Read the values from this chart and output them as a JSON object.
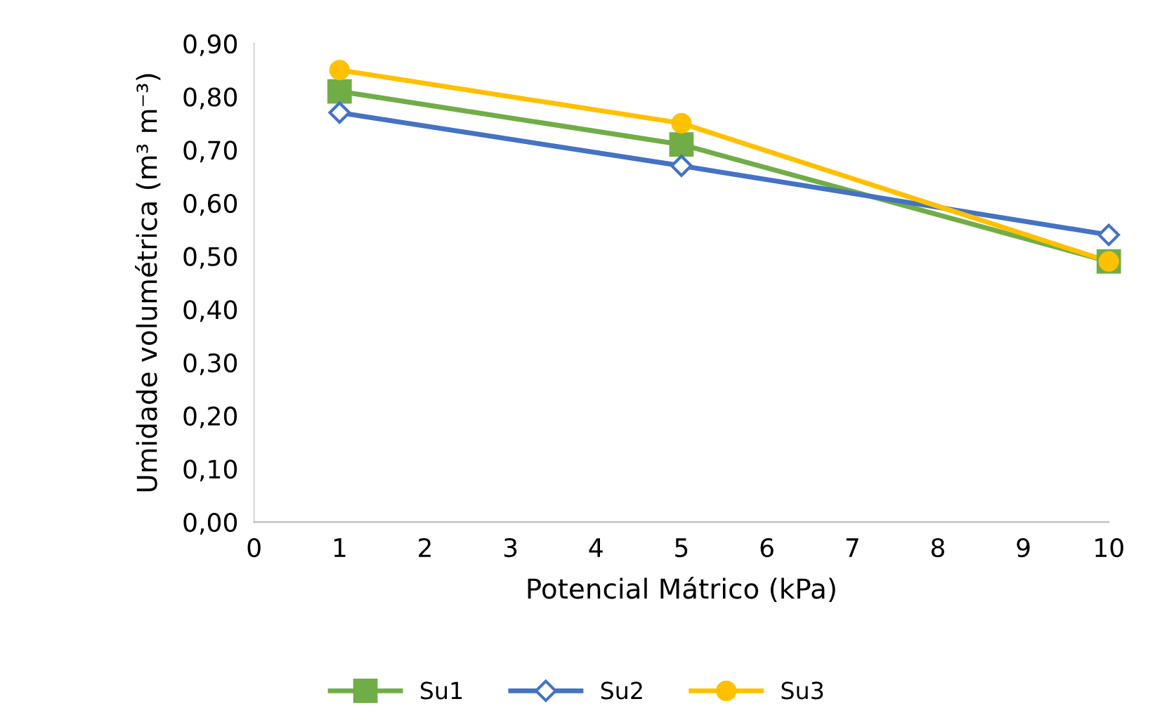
{
  "chart_data": {
    "type": "line",
    "xlabel": "Potencial Mátrico (kPa)",
    "ylabel": "Umidade volumétrica (m³ m⁻³)",
    "xlim": [
      0,
      10
    ],
    "xticks": [
      0,
      1,
      2,
      3,
      4,
      5,
      6,
      7,
      8,
      9,
      10
    ],
    "ylim": [
      0,
      0.9
    ],
    "yticks": [
      {
        "value": 0,
        "label": "0,00"
      },
      {
        "value": 0.1,
        "label": "0,10"
      },
      {
        "value": 0.2,
        "label": "0,20"
      },
      {
        "value": 0.3,
        "label": "0,30"
      },
      {
        "value": 0.4,
        "label": "0,40"
      },
      {
        "value": 0.5,
        "label": "0,50"
      },
      {
        "value": 0.6,
        "label": "0,60"
      },
      {
        "value": 0.7,
        "label": "0,70"
      },
      {
        "value": 0.8,
        "label": "0,80"
      },
      {
        "value": 0.9,
        "label": "0,90"
      }
    ],
    "x": [
      1,
      5,
      10
    ],
    "grid": false,
    "legend": "bottom",
    "line_style": "solid",
    "series": [
      {
        "name": "Su1",
        "color": "#70ad47",
        "marker": "square",
        "values": [
          0.81,
          0.71,
          0.49
        ]
      },
      {
        "name": "Su2",
        "color": "#4472c4",
        "marker": "diamond",
        "values": [
          0.77,
          0.67,
          0.54
        ]
      },
      {
        "name": "Su3",
        "color": "#ffc000",
        "marker": "circle",
        "values": [
          0.85,
          0.75,
          0.49
        ]
      }
    ]
  }
}
